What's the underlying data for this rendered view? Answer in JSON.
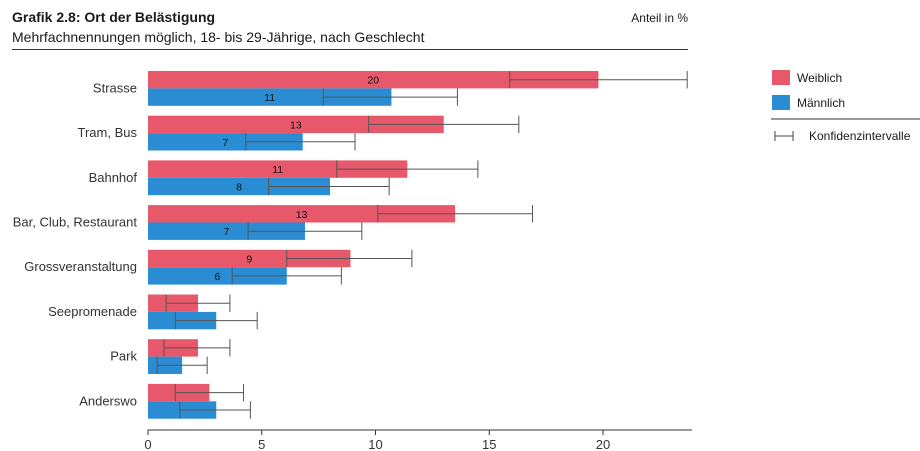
{
  "header": {
    "title": "Grafik 2.8: Ort der Belästigung",
    "subtitle": "Mehrfachnennungen möglich, 18- bis 29-Jährige, nach Geschlecht",
    "unit": "Anteil in %"
  },
  "legend": {
    "female": "Weiblich",
    "male": "Männlich",
    "ci": "Konfidenzintervalle"
  },
  "chart_data": {
    "type": "bar",
    "orientation": "horizontal",
    "categories": [
      "Strasse",
      "Tram, Bus",
      "Bahnhof",
      "Bar, Club, Restaurant",
      "Grossveranstaltung",
      "Seepromenade",
      "Park",
      "Anderswo"
    ],
    "series": [
      {
        "name": "Weiblich",
        "color": "#e8586b",
        "values": [
          19.8,
          13.0,
          11.4,
          13.5,
          8.9,
          2.2,
          2.2,
          2.7
        ],
        "labels": [
          "20",
          "13",
          "11",
          "13",
          "9",
          "",
          "",
          ""
        ],
        "ci": [
          [
            15.9,
            23.7
          ],
          [
            9.7,
            16.3
          ],
          [
            8.3,
            14.5
          ],
          [
            10.1,
            16.9
          ],
          [
            6.1,
            11.6
          ],
          [
            0.8,
            3.6
          ],
          [
            0.7,
            3.6
          ],
          [
            1.2,
            4.2
          ]
        ]
      },
      {
        "name": "Männlich",
        "color": "#2a8dd4",
        "values": [
          10.7,
          6.8,
          8.0,
          6.9,
          6.1,
          3.0,
          1.5,
          3.0
        ],
        "labels": [
          "11",
          "7",
          "8",
          "7",
          "6",
          "",
          "",
          ""
        ],
        "ci": [
          [
            7.7,
            13.6
          ],
          [
            4.3,
            9.1
          ],
          [
            5.3,
            10.6
          ],
          [
            4.4,
            9.4
          ],
          [
            3.7,
            8.5
          ],
          [
            1.2,
            4.8
          ],
          [
            0.4,
            2.6
          ],
          [
            1.4,
            4.5
          ]
        ]
      }
    ],
    "xticks": [
      0,
      5,
      10,
      15,
      20
    ],
    "xlim": [
      0,
      23.9
    ],
    "grid": false,
    "legend_position": "right"
  }
}
